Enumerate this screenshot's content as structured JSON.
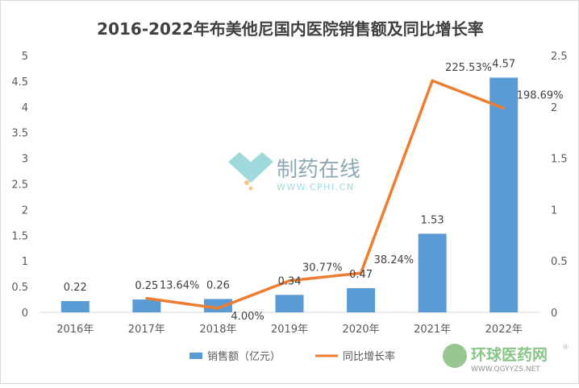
{
  "chart_data": {
    "type": "bar+line",
    "title": "2016-2022年布美他尼国内医院销售额及同比增长率",
    "categories": [
      "2016年",
      "2017年",
      "2018年",
      "2019年",
      "2020年",
      "2021年",
      "2022年"
    ],
    "series": [
      {
        "name": "销售额（亿元）",
        "type": "bar",
        "axis": "left",
        "color": "#5B9BD5",
        "values": [
          0.22,
          0.25,
          0.26,
          0.34,
          0.47,
          1.53,
          4.57
        ],
        "labels": [
          "0.22",
          "0.25",
          "0.26",
          "0.34",
          "0.47",
          "1.53",
          "4.57"
        ]
      },
      {
        "name": "同比增长率",
        "type": "line",
        "axis": "right",
        "color": "#ED7D31",
        "values": [
          null,
          0.1364,
          0.04,
          0.3077,
          0.3824,
          2.2553,
          1.9869
        ],
        "labels": [
          "",
          "13.64%",
          "4.00%",
          "30.77%",
          "38.24%",
          "225.53%",
          "198.69%"
        ]
      }
    ],
    "y_left": {
      "range": [
        0,
        5
      ],
      "ticks": [
        "0",
        "0.5",
        "1",
        "1.5",
        "2",
        "2.5",
        "3",
        "3.5",
        "4",
        "4.5",
        "5"
      ]
    },
    "y_right": {
      "range": [
        0,
        2.5
      ],
      "ticks": [
        "0",
        "0.5",
        "1",
        "1.5",
        "2",
        "2.5"
      ]
    },
    "grid": false,
    "legend": "bottom"
  },
  "watermarks": {
    "center": {
      "name": "制药在线",
      "url": "WWW.CPHI.CN"
    },
    "corner": {
      "name": "环球医药网",
      "url": "WWW.QGYYZS.NET",
      "mark": "®"
    }
  }
}
